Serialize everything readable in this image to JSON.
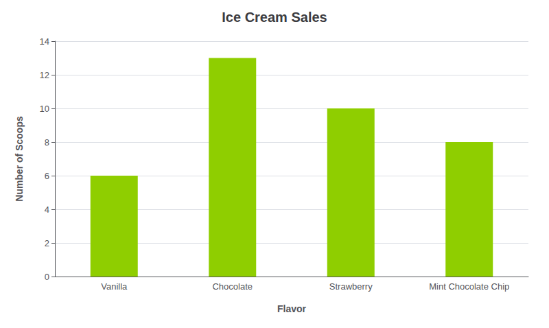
{
  "chart_data": {
    "type": "bar",
    "title": "Ice Cream Sales",
    "xlabel": "Flavor",
    "ylabel": "Number of Scoops",
    "categories": [
      "Vanilla",
      "Chocolate",
      "Strawberry",
      "Mint Chocolate Chip"
    ],
    "values": [
      6,
      13,
      10,
      8
    ],
    "color": "#8fce00",
    "ylim": [
      0,
      14
    ],
    "yticks": [
      0,
      2,
      4,
      6,
      8,
      10,
      12,
      14
    ],
    "grid": true
  }
}
